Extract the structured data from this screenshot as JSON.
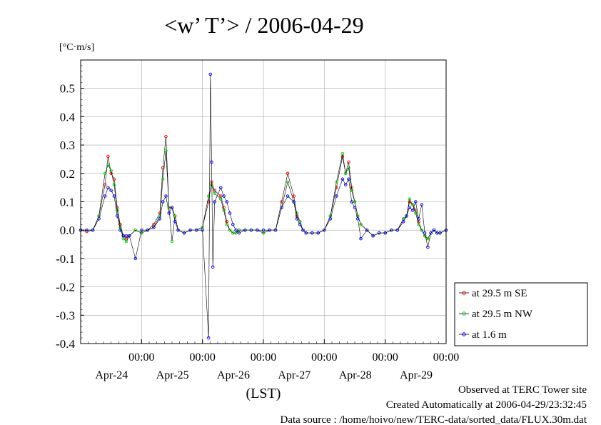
{
  "chart_data": {
    "type": "line",
    "title": "<w’ T’> / 2006-04-29",
    "ylabel": "[°C·m/s]",
    "xlabel": "(LST)",
    "ylim": [
      -0.4,
      0.6
    ],
    "yticks": [
      -0.4,
      -0.3,
      -0.2,
      -0.1,
      0.0,
      0.1,
      0.2,
      0.3,
      0.4,
      0.5
    ],
    "ytick_labels": [
      "-0.4",
      "-0.3",
      "-0.2",
      "-0.1",
      "0.0",
      "0.1",
      "0.2",
      "0.3",
      "0.4",
      "0.5"
    ],
    "xlim": [
      -1.0,
      5.0
    ],
    "xticks": [
      0,
      1,
      2,
      3,
      4,
      5
    ],
    "xtick_time_labels": [
      "00:00",
      "00:00",
      "00:00",
      "00:00",
      "00:00",
      "00:00"
    ],
    "xtick_date_labels": [
      "Apr-24",
      "Apr-25",
      "Apr-26",
      "Apr-27",
      "Apr-28",
      "Apr-29"
    ],
    "x_units": "days relative to 2006-04-24 00:00 LST",
    "grid": true,
    "legend_position": "right, outside plot",
    "series": [
      {
        "name": "at 29.5 m SE",
        "color": "#ff0000",
        "x": [
          -1.0,
          -0.9,
          -0.8,
          -0.7,
          -0.6,
          -0.55,
          -0.5,
          -0.45,
          -0.4,
          -0.35,
          -0.3,
          -0.25,
          -0.2,
          -0.1,
          0.0,
          0.1,
          0.2,
          0.3,
          0.35,
          0.4,
          0.45,
          0.5,
          0.55,
          0.6,
          0.7,
          0.8,
          0.9,
          1.0,
          1.1,
          1.15,
          1.2,
          1.3,
          1.35,
          1.4,
          1.45,
          1.5,
          1.55,
          1.6,
          1.7,
          1.8,
          1.9,
          2.0,
          2.1,
          2.2,
          2.3,
          2.4,
          2.5,
          2.55,
          2.6,
          2.65,
          2.7,
          2.8,
          2.9,
          3.0,
          3.1,
          3.2,
          3.3,
          3.35,
          3.4,
          3.45,
          3.5,
          3.55,
          3.6,
          3.7,
          3.8,
          3.9,
          4.0,
          4.1,
          4.2,
          4.3,
          4.35,
          4.4,
          4.45,
          4.5,
          4.55,
          4.6,
          4.65,
          4.7,
          4.75,
          4.8,
          4.85,
          4.9,
          5.0
        ],
        "y": [
          0.0,
          -0.005,
          0.0,
          0.05,
          0.16,
          0.26,
          0.2,
          0.18,
          0.08,
          0.02,
          -0.02,
          -0.03,
          -0.02,
          0.0,
          -0.01,
          0.0,
          0.02,
          0.06,
          0.22,
          0.33,
          0.08,
          0.08,
          0.05,
          0.0,
          -0.01,
          0.0,
          0.0,
          0.01,
          0.1,
          0.17,
          0.14,
          0.12,
          0.08,
          0.03,
          0.0,
          -0.01,
          -0.01,
          0.0,
          0.0,
          0.0,
          0.0,
          -0.01,
          0.0,
          0.0,
          0.1,
          0.2,
          0.12,
          0.05,
          0.03,
          0.0,
          -0.01,
          -0.01,
          -0.01,
          0.0,
          0.05,
          0.15,
          0.26,
          0.2,
          0.24,
          0.15,
          0.1,
          0.05,
          0.02,
          0.0,
          -0.02,
          -0.01,
          -0.01,
          0.0,
          0.0,
          0.04,
          0.05,
          0.1,
          0.09,
          0.07,
          0.03,
          0.0,
          -0.02,
          -0.03,
          -0.01,
          0.0,
          -0.01,
          -0.01,
          0.0
        ]
      },
      {
        "name": "at 29.5 m NW",
        "color": "#00dd00",
        "x": [
          -1.0,
          -0.9,
          -0.8,
          -0.7,
          -0.6,
          -0.55,
          -0.5,
          -0.45,
          -0.4,
          -0.35,
          -0.3,
          -0.25,
          -0.2,
          -0.1,
          0.0,
          0.1,
          0.2,
          0.3,
          0.35,
          0.4,
          0.45,
          0.5,
          0.55,
          0.6,
          0.7,
          0.8,
          0.9,
          1.0,
          1.1,
          1.15,
          1.2,
          1.3,
          1.35,
          1.4,
          1.45,
          1.5,
          1.55,
          1.6,
          1.7,
          1.8,
          1.9,
          2.0,
          2.1,
          2.2,
          2.3,
          2.4,
          2.5,
          2.55,
          2.6,
          2.65,
          2.7,
          2.8,
          2.9,
          3.0,
          3.1,
          3.2,
          3.3,
          3.35,
          3.4,
          3.45,
          3.5,
          3.55,
          3.6,
          3.7,
          3.8,
          3.9,
          4.0,
          4.1,
          4.2,
          4.3,
          4.35,
          4.4,
          4.45,
          4.5,
          4.55,
          4.6,
          4.65,
          4.7,
          4.75,
          4.8,
          4.85,
          4.9,
          5.0
        ],
        "y": [
          0.0,
          0.0,
          0.0,
          0.05,
          0.2,
          0.23,
          0.21,
          0.16,
          0.07,
          0.01,
          -0.03,
          -0.04,
          -0.02,
          0.0,
          -0.01,
          0.0,
          0.01,
          0.05,
          0.18,
          0.28,
          0.08,
          -0.04,
          0.05,
          0.0,
          -0.01,
          0.0,
          0.0,
          0.01,
          0.12,
          0.16,
          0.13,
          0.11,
          0.07,
          0.02,
          0.0,
          -0.01,
          -0.01,
          0.0,
          0.0,
          0.0,
          0.0,
          -0.01,
          0.0,
          0.0,
          0.08,
          0.17,
          0.1,
          0.06,
          0.03,
          0.0,
          -0.01,
          -0.01,
          -0.01,
          0.0,
          0.05,
          0.17,
          0.27,
          0.2,
          0.22,
          0.14,
          0.1,
          0.05,
          0.02,
          0.0,
          -0.02,
          -0.01,
          -0.01,
          0.0,
          0.0,
          0.04,
          0.05,
          0.11,
          0.09,
          0.06,
          0.02,
          0.0,
          -0.02,
          -0.03,
          -0.01,
          0.0,
          -0.01,
          -0.01,
          0.0
        ]
      },
      {
        "name": "at 1.6 m",
        "color": "#0000ff",
        "x": [
          -1.0,
          -0.9,
          -0.8,
          -0.7,
          -0.6,
          -0.55,
          -0.5,
          -0.45,
          -0.4,
          -0.35,
          -0.3,
          -0.25,
          -0.2,
          -0.1,
          0.0,
          0.1,
          0.2,
          0.3,
          0.35,
          0.4,
          0.45,
          0.5,
          0.55,
          0.6,
          0.7,
          0.8,
          0.9,
          1.0,
          1.1,
          1.13,
          1.15,
          1.17,
          1.2,
          1.3,
          1.35,
          1.4,
          1.45,
          1.5,
          1.55,
          1.6,
          1.7,
          1.8,
          1.9,
          2.0,
          2.1,
          2.2,
          2.3,
          2.4,
          2.5,
          2.55,
          2.6,
          2.65,
          2.7,
          2.8,
          2.9,
          3.0,
          3.1,
          3.2,
          3.3,
          3.35,
          3.4,
          3.45,
          3.5,
          3.55,
          3.6,
          3.7,
          3.8,
          3.9,
          4.0,
          4.1,
          4.2,
          4.3,
          4.35,
          4.4,
          4.45,
          4.5,
          4.55,
          4.6,
          4.65,
          4.7,
          4.75,
          4.8,
          4.85,
          4.9,
          5.0
        ],
        "y": [
          0.0,
          0.0,
          0.0,
          0.04,
          0.12,
          0.15,
          0.14,
          0.12,
          0.05,
          0.0,
          -0.02,
          -0.02,
          -0.02,
          -0.1,
          0.0,
          0.0,
          0.01,
          0.04,
          0.1,
          0.12,
          0.06,
          0.08,
          0.03,
          0.0,
          -0.01,
          0.0,
          0.0,
          0.0,
          -0.38,
          0.55,
          0.24,
          -0.13,
          0.1,
          0.15,
          0.12,
          0.1,
          0.06,
          0.02,
          0.0,
          -0.01,
          0.0,
          0.0,
          0.0,
          0.0,
          0.0,
          0.0,
          0.08,
          0.12,
          0.1,
          0.04,
          0.02,
          0.0,
          -0.01,
          -0.01,
          -0.01,
          0.0,
          0.04,
          0.12,
          0.18,
          0.16,
          0.18,
          0.1,
          0.08,
          0.04,
          -0.03,
          0.0,
          -0.02,
          -0.01,
          -0.01,
          0.0,
          0.0,
          0.03,
          0.05,
          0.08,
          0.07,
          0.1,
          0.04,
          0.09,
          -0.01,
          -0.06,
          -0.01,
          0.0,
          -0.01,
          -0.01,
          0.0
        ]
      }
    ]
  },
  "footer": {
    "line1": "Observed at TERC Tower site",
    "line2": "Created Automatically at 2006-04-29/23:32:45",
    "line3": "Data source : /home/hoivo/new/TERC-data/sorted_data/FLUX.30m.dat"
  }
}
